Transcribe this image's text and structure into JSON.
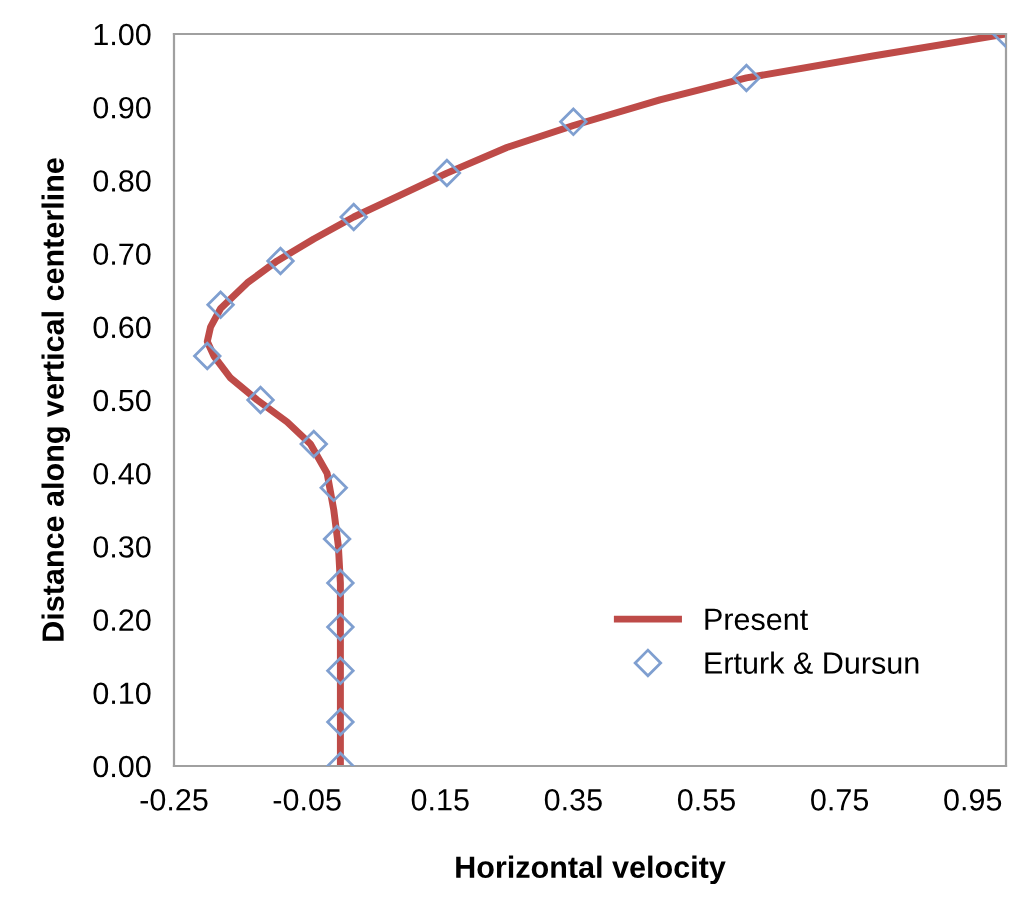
{
  "chart_data": {
    "type": "line",
    "xlabel": "Horizontal velocity",
    "ylabel": "Distance along vertical centerline",
    "xlim": [
      -0.25,
      1.0
    ],
    "xticks": [
      -0.25,
      -0.05,
      0.15,
      0.35,
      0.55,
      0.75,
      0.95
    ],
    "ylim": [
      0,
      1
    ],
    "yticks": [
      {
        "value": 0,
        "label": "0.00"
      },
      {
        "value": 0.1,
        "label": "0.10"
      },
      {
        "value": 0.2,
        "label": "0.20"
      },
      {
        "value": 0.3,
        "label": "0.30"
      },
      {
        "value": 0.4,
        "label": "0.40"
      },
      {
        "value": 0.5,
        "label": "0.50"
      },
      {
        "value": 0.6,
        "label": "0.60"
      },
      {
        "value": 0.7,
        "label": "0.70"
      },
      {
        "value": 0.8,
        "label": "0.80"
      },
      {
        "value": 0.9,
        "label": "0.90"
      },
      {
        "value": 1,
        "label": "1.00"
      }
    ],
    "grid": false,
    "legend": "bottom right",
    "series": [
      {
        "name": "Present",
        "color": "#be4b48",
        "marker": "none",
        "line_style": "solid",
        "x": [
          0,
          0,
          0,
          0,
          -0.003,
          -0.01,
          -0.02,
          -0.045,
          -0.08,
          -0.125,
          -0.165,
          -0.19,
          -0.2,
          -0.195,
          -0.18,
          -0.14,
          -0.095,
          -0.04,
          0.02,
          0.09,
          0.16,
          0.25,
          0.35,
          0.48,
          0.61,
          0.8,
          1.0
        ],
        "values": [
          0,
          0.1,
          0.2,
          0.25,
          0.3,
          0.35,
          0.4,
          0.44,
          0.47,
          0.5,
          0.53,
          0.56,
          0.58,
          0.6,
          0.625,
          0.66,
          0.69,
          0.72,
          0.75,
          0.78,
          0.81,
          0.845,
          0.875,
          0.91,
          0.94,
          0.97,
          1.0
        ]
      },
      {
        "name": "Erturk & Dursun",
        "type": "scatter",
        "color": "#7f9fd0",
        "marker": "diamond",
        "x": [
          0,
          0,
          0,
          0,
          0,
          -0.005,
          -0.01,
          -0.04,
          -0.12,
          -0.2,
          -0.18,
          -0.09,
          0.02,
          0.16,
          0.35,
          0.61,
          1.0
        ],
        "values": [
          0,
          0.06,
          0.13,
          0.19,
          0.25,
          0.31,
          0.38,
          0.44,
          0.5,
          0.56,
          0.63,
          0.69,
          0.75,
          0.81,
          0.88,
          0.94,
          1.0
        ]
      }
    ]
  }
}
